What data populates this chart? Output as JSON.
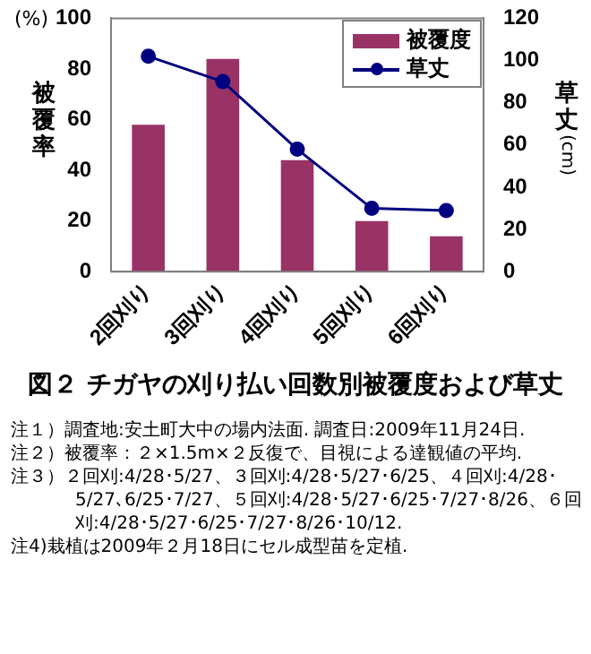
{
  "chart_data": {
    "type": "bar",
    "title": "図２ チガヤの刈り払い回数別被覆度および草丈",
    "categories": [
      "2回刈り",
      "3回刈り",
      "4回刈り",
      "5回刈り",
      "6回刈り"
    ],
    "series": [
      {
        "name": "被覆度",
        "type": "bar",
        "color": "#993366",
        "values": [
          58,
          84,
          44,
          20,
          14
        ]
      },
      {
        "name": "草丈",
        "type": "line",
        "axis": "y2",
        "color": "#000080",
        "values": [
          102,
          90,
          58,
          30,
          29
        ]
      }
    ],
    "ylabel": "被覆率",
    "y2label": "草丈 (cm)",
    "ylim": [
      0,
      100
    ],
    "yticks": [
      0,
      20,
      40,
      60,
      80,
      100
    ],
    "y2lim": [
      0,
      120
    ],
    "y2ticks": [
      0,
      20,
      40,
      60,
      80,
      100,
      120
    ],
    "legend": "top right",
    "marker": "circle",
    "annotations": [
      "(%)",
      "注１）調査地:安土町大中の場内法面. 調査日:2009年11月24日.",
      "注２）被覆率：２×1.5m×２反復で、目視による達観値の平均.",
      "注３）２回刈:4/28･5/27、３回刈:4/28･5/27･6/25、４回刈:4/28･5/27､6/25･7/27、５回刈:4/28･5/27･6/25･7/27･8/26、６回刈:4/28･5/27･6/25･7/27･8/26･10/12.",
      "注4)栽植は2009年２月18日にセル成型苗を定植."
    ]
  }
}
